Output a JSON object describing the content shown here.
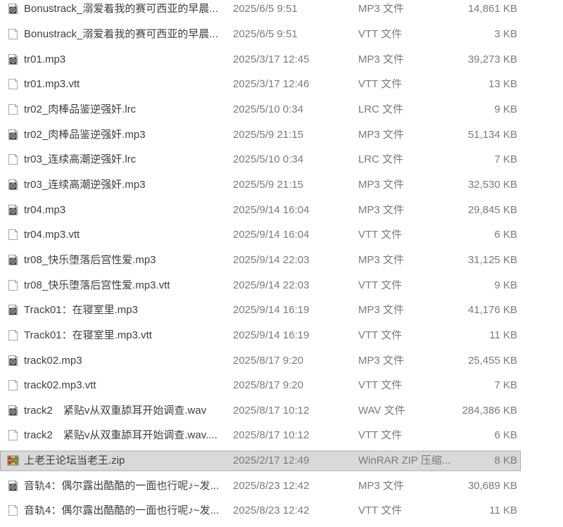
{
  "colors": {
    "background": "#ffffff",
    "name_text": "#3f3f3f",
    "secondary_text": "#7b7b7b",
    "selected_row_bg": "#d9d9d9",
    "selected_row_border": "#ababab"
  },
  "files": [
    {
      "icon": "audio-file-icon",
      "name": "Bonustrack_溺爱着我的赛可西亚的早晨...",
      "date": "2025/6/5 9:51",
      "type": "MP3 文件",
      "size": "14,861 KB",
      "selected": false
    },
    {
      "icon": "document-file-icon",
      "name": "Bonustrack_溺爱着我的赛可西亚的早晨...",
      "date": "2025/6/5 9:51",
      "type": "VTT 文件",
      "size": "3 KB",
      "selected": false
    },
    {
      "icon": "audio-file-icon",
      "name": "tr01.mp3",
      "date": "2025/3/17 12:45",
      "type": "MP3 文件",
      "size": "39,273 KB",
      "selected": false
    },
    {
      "icon": "document-file-icon",
      "name": "tr01.mp3.vtt",
      "date": "2025/3/17 12:46",
      "type": "VTT 文件",
      "size": "13 KB",
      "selected": false
    },
    {
      "icon": "document-file-icon",
      "name": "tr02_肉棒品鉴逆强奸.lrc",
      "date": "2025/5/10 0:34",
      "type": "LRC 文件",
      "size": "9 KB",
      "selected": false
    },
    {
      "icon": "audio-file-icon",
      "name": "tr02_肉棒品鉴逆强奸.mp3",
      "date": "2025/5/9 21:15",
      "type": "MP3 文件",
      "size": "51,134 KB",
      "selected": false
    },
    {
      "icon": "document-file-icon",
      "name": "tr03_连续高潮逆强奸.lrc",
      "date": "2025/5/10 0:34",
      "type": "LRC 文件",
      "size": "7 KB",
      "selected": false
    },
    {
      "icon": "audio-file-icon",
      "name": "tr03_连续高潮逆强奸.mp3",
      "date": "2025/5/9 21:15",
      "type": "MP3 文件",
      "size": "32,530 KB",
      "selected": false
    },
    {
      "icon": "audio-file-icon",
      "name": "tr04.mp3",
      "date": "2025/9/14 16:04",
      "type": "MP3 文件",
      "size": "29,845 KB",
      "selected": false
    },
    {
      "icon": "document-file-icon",
      "name": "tr04.mp3.vtt",
      "date": "2025/9/14 16:04",
      "type": "VTT 文件",
      "size": "6 KB",
      "selected": false
    },
    {
      "icon": "audio-file-icon",
      "name": "tr08_快乐堕落后宫性爱.mp3",
      "date": "2025/9/14 22:03",
      "type": "MP3 文件",
      "size": "31,125 KB",
      "selected": false
    },
    {
      "icon": "document-file-icon",
      "name": "tr08_快乐堕落后宫性爱.mp3.vtt",
      "date": "2025/9/14 22:03",
      "type": "VTT 文件",
      "size": "9 KB",
      "selected": false
    },
    {
      "icon": "audio-file-icon",
      "name": "Track01：在寝室里.mp3",
      "date": "2025/9/14 16:19",
      "type": "MP3 文件",
      "size": "41,176 KB",
      "selected": false
    },
    {
      "icon": "document-file-icon",
      "name": "Track01：在寝室里.mp3.vtt",
      "date": "2025/9/14 16:19",
      "type": "VTT 文件",
      "size": "11 KB",
      "selected": false
    },
    {
      "icon": "audio-file-icon",
      "name": "track02.mp3",
      "date": "2025/8/17 9:20",
      "type": "MP3 文件",
      "size": "25,455 KB",
      "selected": false
    },
    {
      "icon": "document-file-icon",
      "name": "track02.mp3.vtt",
      "date": "2025/8/17 9:20",
      "type": "VTT 文件",
      "size": "7 KB",
      "selected": false
    },
    {
      "icon": "audio-file-icon",
      "name": "track2　紧贴v从双重舔耳开始调查.wav",
      "date": "2025/8/17 10:12",
      "type": "WAV 文件",
      "size": "284,386 KB",
      "selected": false
    },
    {
      "icon": "document-file-icon",
      "name": "track2　紧贴v从双重舔耳开始调查.wav....",
      "date": "2025/8/17 10:12",
      "type": "VTT 文件",
      "size": "6 KB",
      "selected": false
    },
    {
      "icon": "archive-file-icon",
      "name": "上老王论坛当老王.zip",
      "date": "2025/2/17 12:49",
      "type": "WinRAR ZIP 压缩...",
      "size": "8 KB",
      "selected": true
    },
    {
      "icon": "audio-file-icon",
      "name": "音轨4：偶尔露出酷酷的一面也行呢♪~发...",
      "date": "2025/8/23 12:42",
      "type": "MP3 文件",
      "size": "30,689 KB",
      "selected": false
    },
    {
      "icon": "document-file-icon",
      "name": "音轨4：偶尔露出酷酷的一面也行呢♪~发...",
      "date": "2025/8/23 12:42",
      "type": "VTT 文件",
      "size": "11 KB",
      "selected": false
    }
  ]
}
